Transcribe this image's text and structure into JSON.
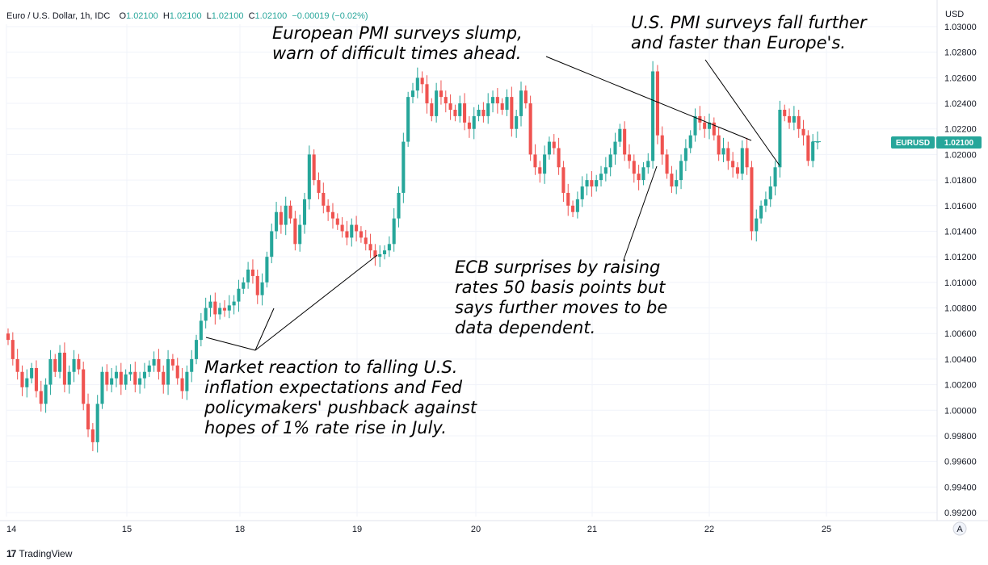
{
  "header": {
    "symbol": "Euro / U.S. Dollar, 1h, IDC",
    "open_label": "O",
    "open": "1.02100",
    "high_label": "H",
    "high": "1.02100",
    "low_label": "L",
    "low": "1.02100",
    "close_label": "C",
    "close": "1.02100",
    "change": "−0.00019 (−0.02%)"
  },
  "price_axis": {
    "currency": "USD",
    "ticks": [
      "1.03000",
      "1.02800",
      "1.02600",
      "1.02400",
      "1.02200",
      "1.02000",
      "1.01800",
      "1.01600",
      "1.01400",
      "1.01200",
      "1.01000",
      "1.00800",
      "1.00600",
      "1.00400",
      "1.00200",
      "1.00000",
      "0.99800",
      "0.99600",
      "0.99400",
      "0.99200"
    ]
  },
  "price_tag": {
    "symbol": "EURUSD",
    "price": "1.02100"
  },
  "time_axis": {
    "labels": [
      "14",
      "15",
      "18",
      "19",
      "20",
      "21",
      "22",
      "25"
    ],
    "auto_label": "A"
  },
  "brand": {
    "name": "TradingView",
    "logo": "17"
  },
  "annotations": {
    "european_pmi": [
      "European PMI surveys slump,",
      "warn of difficult times ahead."
    ],
    "us_pmi": [
      "U.S. PMI surveys fall further",
      "and faster than Europe's."
    ],
    "ecb": [
      "ECB surprises by raising",
      "rates 50 basis points but",
      "says further moves to be",
      "data dependent."
    ],
    "market": [
      "Market reaction to falling U.S.",
      "inflation expectations and Fed",
      "policymakers' pushback against",
      "hopes of 1% rate rise in July."
    ]
  },
  "colors": {
    "up": "#26a69a",
    "down": "#ef5350",
    "tag_bg": "#26a69a",
    "grid": "#f0f3fa"
  },
  "chart_data": {
    "type": "candlestick",
    "title": "Euro / U.S. Dollar, 1h, IDC",
    "ylabel": "USD",
    "ylim": [
      0.992,
      1.031
    ],
    "y_scale": "linear",
    "grid": true,
    "x_labels": [
      "14",
      "15",
      "18",
      "19",
      "20",
      "21",
      "22",
      "25"
    ],
    "last_price": 1.021,
    "closes": [
      1.0055,
      1.004,
      1.003,
      1.0018,
      1.0025,
      1.0033,
      1.0015,
      1.0005,
      1.002,
      1.004,
      1.003,
      1.0045,
      1.002,
      1.003,
      1.004,
      1.0032,
      1.0005,
      0.9985,
      0.9975,
      1.0005,
      1.003,
      1.002,
      1.0025,
      1.003,
      1.002,
      1.0028,
      1.003,
      1.002,
      1.0025,
      1.003,
      1.0035,
      1.004,
      1.003,
      1.002,
      1.004,
      1.0035,
      1.0025,
      1.0015,
      1.003,
      1.004,
      1.0055,
      1.007,
      1.008,
      1.0085,
      1.0075,
      1.008,
      1.0078,
      1.0082,
      1.0085,
      1.0095,
      1.01,
      1.011,
      1.0105,
      1.009,
      1.01,
      1.012,
      1.014,
      1.0155,
      1.0145,
      1.016,
      1.015,
      1.013,
      1.0145,
      1.0165,
      1.02,
      1.018,
      1.017,
      1.016,
      1.0155,
      1.015,
      1.0145,
      1.014,
      1.0135,
      1.0145,
      1.014,
      1.0135,
      1.013,
      1.0125,
      1.012,
      1.0122,
      1.0125,
      1.013,
      1.015,
      1.017,
      1.021,
      1.0245,
      1.025,
      1.026,
      1.0255,
      1.024,
      1.023,
      1.025,
      1.0245,
      1.024,
      1.0235,
      1.023,
      1.024,
      1.0225,
      1.022,
      1.023,
      1.0235,
      1.023,
      1.024,
      1.0245,
      1.024,
      1.0235,
      1.0245,
      1.022,
      1.023,
      1.025,
      1.024,
      1.02,
      1.019,
      1.0185,
      1.02,
      1.021,
      1.0205,
      1.019,
      1.017,
      1.016,
      1.0155,
      1.0165,
      1.0175,
      1.018,
      1.0175,
      1.018,
      1.0185,
      1.019,
      1.02,
      1.021,
      1.022,
      1.02,
      1.0195,
      1.0185,
      1.018,
      1.019,
      1.0195,
      1.0265,
      1.0215,
      1.02,
      1.0185,
      1.0175,
      1.018,
      1.0195,
      1.0205,
      1.0215,
      1.023,
      1.0225,
      1.022,
      1.0225,
      1.0215,
      1.02,
      1.0205,
      1.0195,
      1.019,
      1.0185,
      1.0205,
      1.019,
      1.014,
      1.015,
      1.016,
      1.0165,
      1.0175,
      1.019,
      1.0235,
      1.023,
      1.0225,
      1.023,
      1.022,
      1.0215,
      1.0195,
      1.021,
      1.021
    ]
  }
}
